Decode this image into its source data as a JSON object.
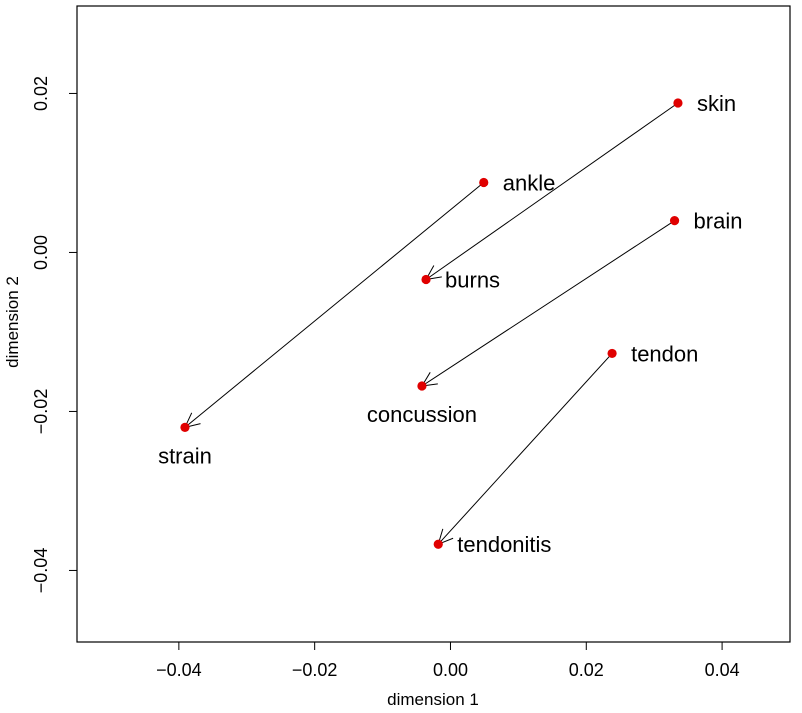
{
  "chart_data": {
    "type": "scatter",
    "xlabel": "dimension 1",
    "ylabel": "dimension 2",
    "xlim": [
      -0.055,
      0.05
    ],
    "ylim": [
      -0.049,
      0.031
    ],
    "xticks": [
      {
        "value": -0.04,
        "label": "−0.04"
      },
      {
        "value": -0.02,
        "label": "−0.02"
      },
      {
        "value": 0.0,
        "label": "0.00"
      },
      {
        "value": 0.02,
        "label": "0.02"
      },
      {
        "value": 0.04,
        "label": "0.04"
      }
    ],
    "yticks": [
      {
        "value": -0.04,
        "label": "−0.04"
      },
      {
        "value": -0.02,
        "label": "−0.02"
      },
      {
        "value": 0.0,
        "label": "0.00"
      },
      {
        "value": 0.02,
        "label": "0.02"
      }
    ],
    "point_color": "#e00000",
    "points": [
      {
        "label": "skin",
        "x": 0.0335,
        "y": 0.0188,
        "label_pos": "right"
      },
      {
        "label": "ankle",
        "x": 0.0049,
        "y": 0.0088,
        "label_pos": "right"
      },
      {
        "label": "brain",
        "x": 0.033,
        "y": 0.004,
        "label_pos": "right"
      },
      {
        "label": "burns",
        "x": -0.0036,
        "y": -0.0034,
        "label_pos": "right"
      },
      {
        "label": "tendon",
        "x": 0.0238,
        "y": -0.0127,
        "label_pos": "right"
      },
      {
        "label": "concussion",
        "x": -0.0042,
        "y": -0.0168,
        "label_pos": "below"
      },
      {
        "label": "strain",
        "x": -0.0391,
        "y": -0.022,
        "label_pos": "below"
      },
      {
        "label": "tendonitis",
        "x": -0.0018,
        "y": -0.0367,
        "label_pos": "right"
      }
    ],
    "arrows": [
      {
        "from": "skin",
        "to": "burns"
      },
      {
        "from": "ankle",
        "to": "strain"
      },
      {
        "from": "brain",
        "to": "concussion"
      },
      {
        "from": "tendon",
        "to": "tendonitis"
      }
    ]
  }
}
